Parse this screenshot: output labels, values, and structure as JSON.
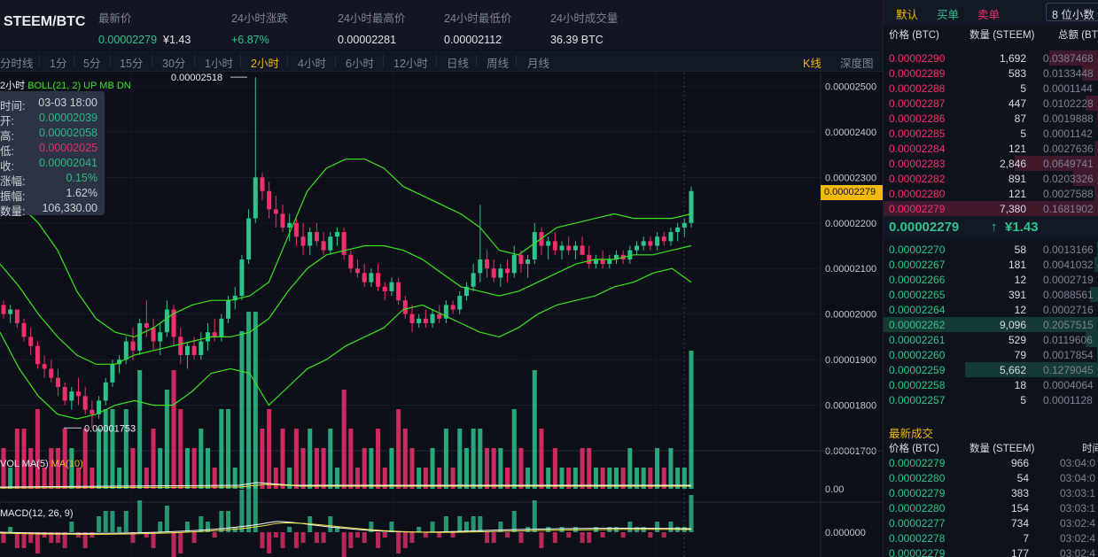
{
  "header": {
    "pair": "STEEM/BTC",
    "latest": {
      "label": "最新价",
      "price": "0.00002279",
      "cny": "¥1.43"
    },
    "change": {
      "label": "24小时涨跌",
      "value": "+6.87%"
    },
    "high": {
      "label": "24小时最高价",
      "value": "0.00002281"
    },
    "low": {
      "label": "24小时最低价",
      "value": "0.00002112"
    },
    "volume": {
      "label": "24小时成交量",
      "value": "36.39 BTC"
    }
  },
  "toolbar": {
    "intervals": [
      "分时线",
      "1分",
      "5分",
      "15分",
      "30分",
      "1小时",
      "2小时",
      "4小时",
      "6小时",
      "12小时",
      "日线",
      "周线",
      "月线"
    ],
    "active_index": 6,
    "view_kline": "K线",
    "view_depth": "深度图"
  },
  "chart": {
    "interval_label": "2小时",
    "boll_label": "BOLL(21, 2) UP MB DN",
    "vol_label": "VOL MA(5)",
    "vol_ma10": "MA(10)",
    "macd_label": "MACD(12, 26, 9)",
    "price_axis": [
      "0.00002500",
      "0.00002400",
      "0.00002300",
      "0.00002200",
      "0.00002100",
      "0.00002000",
      "0.00001900",
      "0.00001800",
      "0.00001700"
    ],
    "max_marker": "0.00002518",
    "min_marker": "0.00001753",
    "current_price_tag": "0.00002279",
    "vol_axis": "0.00",
    "macd_axis": "0.000000",
    "colors": {
      "up": "#2ec38c",
      "down": "#f0306d",
      "boll": "#39e21f",
      "ma5": "#ffffff",
      "ma10": "#f0e040"
    }
  },
  "tooltip": {
    "rows": [
      {
        "k": "时间:",
        "v": "03-03 18:00",
        "color": "#d7dbe3"
      },
      {
        "k": "开:",
        "v": "0.00002039",
        "color": "#2ec38c"
      },
      {
        "k": "高:",
        "v": "0.00002058",
        "color": "#2ec38c"
      },
      {
        "k": "低:",
        "v": "0.00002025",
        "color": "#f0306d"
      },
      {
        "k": "收:",
        "v": "0.00002041",
        "color": "#2ec38c"
      },
      {
        "k": "涨幅:",
        "v": "0.15%",
        "color": "#2ec38c"
      },
      {
        "k": "振幅:",
        "v": "1.62%",
        "color": "#d7dbe3"
      },
      {
        "k": "数量:",
        "v": "106,330.00",
        "color": "#d7dbe3"
      }
    ]
  },
  "panel": {
    "tabs": [
      "默认",
      "买单",
      "卖单"
    ],
    "decimals": "8 位小数",
    "headers": {
      "price": "价格 (BTC)",
      "qty": "数量 (STEEM)",
      "total": "总额 (BTC)"
    },
    "asks": [
      {
        "price": "0.00002290",
        "qty": "1,692",
        "total": "0.0387468",
        "depth": 0.23
      },
      {
        "price": "0.00002289",
        "qty": "583",
        "total": "0.0133448",
        "depth": 0.08
      },
      {
        "price": "0.00002288",
        "qty": "5",
        "total": "0.0001144",
        "depth": 0.0
      },
      {
        "price": "0.00002287",
        "qty": "447",
        "total": "0.0102228",
        "depth": 0.06
      },
      {
        "price": "0.00002286",
        "qty": "87",
        "total": "0.0019888",
        "depth": 0.01
      },
      {
        "price": "0.00002285",
        "qty": "5",
        "total": "0.0001142",
        "depth": 0.0
      },
      {
        "price": "0.00002284",
        "qty": "121",
        "total": "0.0027636",
        "depth": 0.02
      },
      {
        "price": "0.00002283",
        "qty": "2,846",
        "total": "0.0649741",
        "depth": 0.39
      },
      {
        "price": "0.00002282",
        "qty": "891",
        "total": "0.0203326",
        "depth": 0.12
      },
      {
        "price": "0.00002280",
        "qty": "121",
        "total": "0.0027588",
        "depth": 0.02
      },
      {
        "price": "0.00002279",
        "qty": "7,380",
        "total": "0.1681902",
        "depth": 1.0
      }
    ],
    "mid": {
      "price": "0.00002279",
      "arrow": "↑",
      "cny": "¥1.43"
    },
    "bids": [
      {
        "price": "0.00002270",
        "qty": "58",
        "total": "0.0013166",
        "depth": 0.01
      },
      {
        "price": "0.00002267",
        "qty": "181",
        "total": "0.0041032",
        "depth": 0.02
      },
      {
        "price": "0.00002266",
        "qty": "12",
        "total": "0.0002719",
        "depth": 0.0
      },
      {
        "price": "0.00002265",
        "qty": "391",
        "total": "0.0088561",
        "depth": 0.04
      },
      {
        "price": "0.00002264",
        "qty": "12",
        "total": "0.0002716",
        "depth": 0.0
      },
      {
        "price": "0.00002262",
        "qty": "9,096",
        "total": "0.2057515",
        "depth": 1.0
      },
      {
        "price": "0.00002261",
        "qty": "529",
        "total": "0.0119606",
        "depth": 0.06
      },
      {
        "price": "0.00002260",
        "qty": "79",
        "total": "0.0017854",
        "depth": 0.01
      },
      {
        "price": "0.00002259",
        "qty": "5,662",
        "total": "0.1279045",
        "depth": 0.62
      },
      {
        "price": "0.00002258",
        "qty": "18",
        "total": "0.0004064",
        "depth": 0.0
      },
      {
        "price": "0.00002257",
        "qty": "5",
        "total": "0.0001128",
        "depth": 0.0
      }
    ],
    "trades_title": "最新成交",
    "trades_headers": {
      "price": "价格 (BTC)",
      "qty": "数量 (STEEM)",
      "time": "时间"
    },
    "trades": [
      {
        "price": "0.00002279",
        "qty": "966",
        "time": "03:04:0"
      },
      {
        "price": "0.00002280",
        "qty": "54",
        "time": "03:04:0"
      },
      {
        "price": "0.00002279",
        "qty": "383",
        "time": "03:03:1"
      },
      {
        "price": "0.00002280",
        "qty": "154",
        "time": "03:03:1"
      },
      {
        "price": "0.00002277",
        "qty": "734",
        "time": "03:02:4"
      },
      {
        "price": "0.00002278",
        "qty": "7",
        "time": "03:02:4"
      },
      {
        "price": "0.00002279",
        "qty": "177",
        "time": "03:02:4"
      }
    ]
  },
  "chart_data": {
    "type": "candlestick",
    "y_range": [
      1.7e-05,
      2.53e-05
    ],
    "candles": [
      [
        2.02e-05,
        2.03e-05,
        1.99e-05,
        2e-05
      ],
      [
        2e-05,
        2.02e-05,
        1.98e-05,
        2.01e-05
      ],
      [
        2.01e-05,
        2.01e-05,
        1.97e-05,
        1.98e-05
      ],
      [
        1.98e-05,
        1.99e-05,
        1.94e-05,
        1.95e-05
      ],
      [
        1.95e-05,
        1.97e-05,
        1.91e-05,
        1.93e-05
      ],
      [
        1.93e-05,
        1.94e-05,
        1.88e-05,
        1.89e-05
      ],
      [
        1.89e-05,
        1.91e-05,
        1.86e-05,
        1.88e-05
      ],
      [
        1.88e-05,
        1.9e-05,
        1.85e-05,
        1.86e-05
      ],
      [
        1.86e-05,
        1.88e-05,
        1.82e-05,
        1.84e-05
      ],
      [
        1.84e-05,
        1.85e-05,
        1.8e-05,
        1.81e-05
      ],
      [
        1.81e-05,
        1.84e-05,
        1.79e-05,
        1.83e-05
      ],
      [
        1.83e-05,
        1.86e-05,
        1.8e-05,
        1.82e-05
      ],
      [
        1.82e-05,
        1.84e-05,
        1.78e-05,
        1.79e-05
      ],
      [
        1.79e-05,
        1.81e-05,
        1.75e-05,
        1.78e-05
      ],
      [
        1.78e-05,
        1.82e-05,
        1.77e-05,
        1.81e-05
      ],
      [
        1.81e-05,
        1.86e-05,
        1.8e-05,
        1.85e-05
      ],
      [
        1.85e-05,
        1.9e-05,
        1.84e-05,
        1.89e-05
      ],
      [
        1.89e-05,
        1.91e-05,
        1.87e-05,
        1.9e-05
      ],
      [
        1.9e-05,
        1.95e-05,
        1.89e-05,
        1.94e-05
      ],
      [
        1.94e-05,
        1.97e-05,
        1.9e-05,
        1.92e-05
      ],
      [
        1.92e-05,
        1.99e-05,
        1.91e-05,
        1.98e-05
      ],
      [
        1.98e-05,
        2.03e-05,
        1.95e-05,
        1.97e-05
      ],
      [
        1.97e-05,
        1.99e-05,
        1.92e-05,
        1.94e-05
      ],
      [
        1.94e-05,
        1.98e-05,
        1.91e-05,
        1.96e-05
      ],
      [
        1.96e-05,
        2.03e-05,
        1.95e-05,
        2.01e-05
      ],
      [
        2.01e-05,
        2.02e-05,
        1.93e-05,
        1.95e-05
      ],
      [
        1.95e-05,
        1.97e-05,
        1.89e-05,
        1.91e-05
      ],
      [
        1.91e-05,
        1.94e-05,
        1.88e-05,
        1.93e-05
      ],
      [
        1.93e-05,
        1.95e-05,
        1.9e-05,
        1.91e-05
      ],
      [
        1.91e-05,
        1.96e-05,
        1.9e-05,
        1.94e-05
      ],
      [
        1.94e-05,
        1.98e-05,
        1.92e-05,
        1.96e-05
      ],
      [
        1.96e-05,
        1.99e-05,
        1.94e-05,
        1.95e-05
      ],
      [
        1.95e-05,
        2e-05,
        1.94e-05,
        1.99e-05
      ],
      [
        1.99e-05,
        2.04e-05,
        1.98e-05,
        2.03e-05
      ],
      [
        2.03e-05,
        2.06e-05,
        2.01e-05,
        2.04e-05
      ],
      [
        2.04e-05,
        2.13e-05,
        2.03e-05,
        2.12e-05
      ],
      [
        2.12e-05,
        2.23e-05,
        2.11e-05,
        2.21e-05
      ],
      [
        2.21e-05,
        2.52e-05,
        2.2e-05,
        2.3e-05
      ],
      [
        2.3e-05,
        2.31e-05,
        2.25e-05,
        2.27e-05
      ],
      [
        2.27e-05,
        2.29e-05,
        2.21e-05,
        2.23e-05
      ],
      [
        2.23e-05,
        2.26e-05,
        2.19e-05,
        2.22e-05
      ],
      [
        2.22e-05,
        2.24e-05,
        2.18e-05,
        2.19e-05
      ],
      [
        2.19e-05,
        2.22e-05,
        2.16e-05,
        2.2e-05
      ],
      [
        2.2e-05,
        2.21e-05,
        2.15e-05,
        2.17e-05
      ],
      [
        2.17e-05,
        2.2e-05,
        2.13e-05,
        2.15e-05
      ],
      [
        2.15e-05,
        2.19e-05,
        2.13e-05,
        2.18e-05
      ],
      [
        2.18e-05,
        2.2e-05,
        2.15e-05,
        2.16e-05
      ],
      [
        2.16e-05,
        2.18e-05,
        2.13e-05,
        2.14e-05
      ],
      [
        2.14e-05,
        2.18e-05,
        2.13e-05,
        2.17e-05
      ],
      [
        2.17e-05,
        2.19e-05,
        2.15e-05,
        2.18e-05
      ],
      [
        2.18e-05,
        2.19e-05,
        2.12e-05,
        2.13e-05
      ],
      [
        2.13e-05,
        2.14e-05,
        2.09e-05,
        2.1e-05
      ],
      [
        2.1e-05,
        2.12e-05,
        2.08e-05,
        2.09e-05
      ],
      [
        2.09e-05,
        2.11e-05,
        2.06e-05,
        2.07e-05
      ],
      [
        2.07e-05,
        2.1e-05,
        2.06e-05,
        2.09e-05
      ],
      [
        2.09e-05,
        2.11e-05,
        2.05e-05,
        2.06e-05
      ],
      [
        2.06e-05,
        2.07e-05,
        2.03e-05,
        2.05e-05
      ],
      [
        2.05e-05,
        2.08e-05,
        2.04e-05,
        2.07e-05
      ],
      [
        2.07e-05,
        2.08e-05,
        2.02e-05,
        2.03e-05
      ],
      [
        2.03e-05,
        2.04e-05,
        1.99e-05,
        2e-05
      ],
      [
        2e-05,
        2.02e-05,
        1.96e-05,
        1.98e-05
      ],
      [
        1.98e-05,
        2e-05,
        1.97e-05,
        1.99e-05
      ],
      [
        1.99e-05,
        2.01e-05,
        1.97e-05,
        1.98e-05
      ],
      [
        1.98e-05,
        2.01e-05,
        1.97e-05,
        2e-05
      ],
      [
        2e-05,
        2.02e-05,
        1.98e-05,
        1.99e-05
      ],
      [
        1.99e-05,
        2.03e-05,
        1.98e-05,
        2.02e-05
      ],
      [
        2.02e-05,
        2.03e-05,
        2e-05,
        2.01e-05
      ],
      [
        2.01e-05,
        2.05e-05,
        2e-05,
        2.04e-05
      ],
      [
        2.04e-05,
        2.07e-05,
        2.03e-05,
        2.06e-05
      ],
      [
        2.06e-05,
        2.11e-05,
        2.05e-05,
        2.09e-05
      ],
      [
        2.09e-05,
        2.24e-05,
        2.07e-05,
        2.12e-05
      ],
      [
        2.12e-05,
        2.14e-05,
        2.08e-05,
        2.1e-05
      ],
      [
        2.1e-05,
        2.12e-05,
        2.07e-05,
        2.08e-05
      ],
      [
        2.08e-05,
        2.11e-05,
        2.06e-05,
        2.1e-05
      ],
      [
        2.1e-05,
        2.12e-05,
        2.07e-05,
        2.09e-05
      ],
      [
        2.09e-05,
        2.15e-05,
        2.08e-05,
        2.13e-05
      ],
      [
        2.13e-05,
        2.14e-05,
        2.09e-05,
        2.11e-05
      ],
      [
        2.11e-05,
        2.13e-05,
        2.08e-05,
        2.12e-05
      ],
      [
        2.12e-05,
        2.2e-05,
        2.11e-05,
        2.18e-05
      ],
      [
        2.18e-05,
        2.19e-05,
        2.13e-05,
        2.15e-05
      ],
      [
        2.15e-05,
        2.17e-05,
        2.12e-05,
        2.16e-05
      ],
      [
        2.16e-05,
        2.18e-05,
        2.13e-05,
        2.14e-05
      ],
      [
        2.14e-05,
        2.16e-05,
        2.12e-05,
        2.15e-05
      ],
      [
        2.15e-05,
        2.17e-05,
        2.13e-05,
        2.14e-05
      ],
      [
        2.14e-05,
        2.16e-05,
        2.12e-05,
        2.15e-05
      ],
      [
        2.15e-05,
        2.17e-05,
        2.13e-05,
        2.13e-05
      ],
      [
        2.13e-05,
        2.15e-05,
        2.1e-05,
        2.11e-05
      ],
      [
        2.11e-05,
        2.13e-05,
        2.1e-05,
        2.12e-05
      ],
      [
        2.12e-05,
        2.14e-05,
        2.1e-05,
        2.11e-05
      ],
      [
        2.11e-05,
        2.13e-05,
        2.1e-05,
        2.12e-05
      ],
      [
        2.12e-05,
        2.14e-05,
        2.11e-05,
        2.13e-05
      ],
      [
        2.13e-05,
        2.14e-05,
        2.11e-05,
        2.12e-05
      ],
      [
        2.12e-05,
        2.15e-05,
        2.11e-05,
        2.14e-05
      ],
      [
        2.14e-05,
        2.16e-05,
        2.13e-05,
        2.15e-05
      ],
      [
        2.15e-05,
        2.17e-05,
        2.14e-05,
        2.16e-05
      ],
      [
        2.16e-05,
        2.17e-05,
        2.14e-05,
        2.15e-05
      ],
      [
        2.15e-05,
        2.18e-05,
        2.14e-05,
        2.17e-05
      ],
      [
        2.17e-05,
        2.18e-05,
        2.15e-05,
        2.16e-05
      ],
      [
        2.16e-05,
        2.19e-05,
        2.15e-05,
        2.18e-05
      ],
      [
        2.18e-05,
        2.2e-05,
        2.16e-05,
        2.19e-05
      ],
      [
        2.19e-05,
        2.21e-05,
        2.17e-05,
        2.2e-05
      ],
      [
        2.2e-05,
        2.28e-05,
        2.19e-05,
        2.27e-05
      ]
    ],
    "boll": {
      "up": [
        [
          2.27e-05,
          2.24e-05,
          2.2e-05,
          2.14e-05,
          2.05e-05,
          1.99e-05,
          1.96e-05,
          1.95e-05,
          1.97e-05,
          2e-05,
          2.02e-05,
          2.03e-05,
          2.03e-05,
          2.04e-05,
          2.07e-05,
          2.17e-05,
          2.27e-05,
          2.32e-05,
          2.34e-05,
          2.34e-05,
          2.32e-05,
          2.28e-05,
          2.26e-05,
          2.24e-05,
          2.22e-05,
          2.19e-05,
          2.14e-05,
          2.13e-05,
          2.16e-05,
          2.19e-05,
          2.2e-05,
          2.21e-05,
          2.22e-05,
          2.21e-05,
          2.21e-05,
          2.21e-05,
          2.22e-05
        ]
      ],
      "mid": [
        [
          2.11e-05,
          2.06e-05,
          2e-05,
          1.95e-05,
          1.91e-05,
          1.89e-05,
          1.89e-05,
          1.91e-05,
          1.92e-05,
          1.93e-05,
          1.94e-05,
          1.95e-05,
          1.95e-05,
          1.96e-05,
          1.99e-05,
          2.05e-05,
          2.1e-05,
          2.13e-05,
          2.14e-05,
          2.15e-05,
          2.15e-05,
          2.14e-05,
          2.12e-05,
          2.09e-05,
          2.06e-05,
          2.05e-05,
          2.04e-05,
          2.05e-05,
          2.07e-05,
          2.09e-05,
          2.11e-05,
          2.12e-05,
          2.12e-05,
          2.13e-05,
          2.13e-05,
          2.14e-05,
          2.15e-05
        ]
      ],
      "dn": [
        [
          1.96e-05,
          1.88e-05,
          1.82e-05,
          1.78e-05,
          1.77e-05,
          1.78e-05,
          1.8e-05,
          1.81e-05,
          1.8e-05,
          1.8e-05,
          1.83e-05,
          1.87e-05,
          1.88e-05,
          1.87e-05,
          1.8e-05,
          1.84e-05,
          1.88e-05,
          1.9e-05,
          1.93e-05,
          1.95e-05,
          1.97e-05,
          2.01e-05,
          2.02e-05,
          2e-05,
          1.98e-05,
          1.96e-05,
          1.95e-05,
          1.97e-05,
          2e-05,
          2.02e-05,
          2.03e-05,
          2.04e-05,
          2.06e-05,
          2.07e-05,
          2.09e-05,
          2.1e-05,
          2.07e-05
        ]
      ]
    }
  }
}
